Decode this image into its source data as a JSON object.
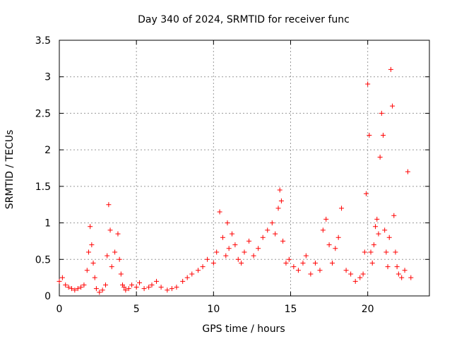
{
  "chart_data": {
    "type": "scatter",
    "title": "Day 340 of 2024, SRMTID for receiver func",
    "xlabel": "GPS time / hours",
    "ylabel": "SRMTID / TECUs",
    "xlim": [
      0,
      24
    ],
    "ylim": [
      0,
      3.5
    ],
    "grid": true,
    "marker": "+",
    "color": "#ff0000",
    "x_ticks": [
      0,
      5,
      10,
      15,
      20
    ],
    "x_tick_labels": [
      "0",
      "5",
      "10",
      "15",
      "20"
    ],
    "y_ticks": [
      0,
      0.5,
      1,
      1.5,
      2,
      2.5,
      3,
      3.5
    ],
    "y_tick_labels": [
      "0",
      "0.5",
      "1",
      "1.5",
      "2",
      "2.5",
      "3",
      "3.5"
    ],
    "series": [
      {
        "name": "SRMTID",
        "x": [
          0,
          0.2,
          0.4,
          0.6,
          0.8,
          1,
          1.2,
          1.4,
          1.6,
          1.8,
          1.9,
          2,
          2.1,
          2.2,
          2.3,
          2.4,
          2.6,
          2.8,
          3,
          3.1,
          3.2,
          3.3,
          3.4,
          3.6,
          3.8,
          3.9,
          4,
          4.1,
          4.2,
          4.3,
          4.5,
          4.7,
          5,
          5.2,
          5.5,
          5.8,
          6,
          6.3,
          6.6,
          7,
          7.3,
          7.6,
          8,
          8.3,
          8.6,
          9,
          9.3,
          9.6,
          10,
          10.2,
          10.4,
          10.6,
          10.8,
          10.9,
          11,
          11.2,
          11.4,
          11.6,
          11.8,
          12,
          12.3,
          12.6,
          12.9,
          13.2,
          13.5,
          13.8,
          14,
          14.2,
          14.3,
          14.4,
          14.5,
          14.7,
          14.9,
          15.2,
          15.5,
          15.8,
          16,
          16.3,
          16.6,
          16.9,
          17.1,
          17.3,
          17.5,
          17.7,
          17.9,
          18.1,
          18.3,
          18.6,
          18.9,
          19.2,
          19.5,
          19.7,
          19.8,
          19.9,
          20,
          20.1,
          20.2,
          20.3,
          20.4,
          20.5,
          20.6,
          20.7,
          20.8,
          20.9,
          21,
          21.1,
          21.2,
          21.3,
          21.4,
          21.5,
          21.6,
          21.7,
          21.8,
          21.9,
          22,
          22.2,
          22.4,
          22.6,
          22.8
        ],
        "y": [
          0.2,
          0.25,
          0.15,
          0.12,
          0.1,
          0.08,
          0.1,
          0.12,
          0.15,
          0.35,
          0.6,
          0.95,
          0.7,
          0.45,
          0.25,
          0.1,
          0.05,
          0.08,
          0.15,
          0.55,
          1.25,
          0.9,
          0.4,
          0.6,
          0.85,
          0.5,
          0.3,
          0.15,
          0.12,
          0.08,
          0.1,
          0.15,
          0.12,
          0.18,
          0.1,
          0.12,
          0.15,
          0.2,
          0.12,
          0.08,
          0.1,
          0.12,
          0.2,
          0.25,
          0.3,
          0.35,
          0.4,
          0.5,
          0.45,
          0.6,
          1.15,
          0.8,
          0.55,
          1.0,
          0.65,
          0.85,
          0.7,
          0.5,
          0.45,
          0.6,
          0.75,
          0.55,
          0.65,
          0.8,
          0.9,
          1.0,
          0.85,
          1.2,
          1.45,
          1.3,
          0.75,
          0.45,
          0.5,
          0.4,
          0.35,
          0.45,
          0.55,
          0.3,
          0.45,
          0.35,
          0.9,
          1.05,
          0.7,
          0.45,
          0.65,
          0.8,
          1.2,
          0.35,
          0.3,
          0.2,
          0.25,
          0.3,
          0.6,
          1.4,
          2.9,
          2.2,
          0.6,
          0.45,
          0.7,
          0.95,
          1.05,
          0.85,
          1.9,
          2.5,
          2.2,
          0.9,
          0.6,
          0.4,
          0.8,
          3.1,
          2.6,
          1.1,
          0.6,
          0.4,
          0.3,
          0.25,
          0.35,
          1.7,
          0.25
        ]
      }
    ]
  }
}
